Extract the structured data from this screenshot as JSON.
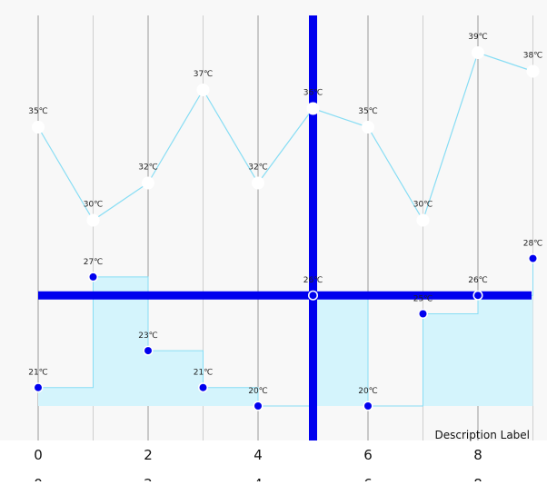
{
  "chart_data": {
    "type": "line",
    "x_ticks": [
      0,
      2,
      4,
      6,
      8
    ],
    "xlim": [
      0,
      9
    ],
    "grid_x": true,
    "description": "Description Label",
    "series": [
      {
        "style": "line",
        "color": "#87DDF4",
        "points": [
          {
            "x": 0,
            "y": 35,
            "label": "35℃"
          },
          {
            "x": 1,
            "y": 30,
            "label": "30℃"
          },
          {
            "x": 2,
            "y": 32,
            "label": "32℃"
          },
          {
            "x": 3,
            "y": 37,
            "label": "37℃"
          },
          {
            "x": 4,
            "y": 32,
            "label": "32℃"
          },
          {
            "x": 5,
            "y": 36,
            "label": "36℃"
          },
          {
            "x": 6,
            "y": 35,
            "label": "35℃"
          },
          {
            "x": 7,
            "y": 30,
            "label": "30℃"
          },
          {
            "x": 8,
            "y": 39,
            "label": "39℃"
          },
          {
            "x": 9,
            "y": 38,
            "label": "38℃"
          }
        ]
      },
      {
        "style": "stepped-area",
        "color": "#87DDF4",
        "fill": "#D4F4FC",
        "marker_color": "#0000EE",
        "points": [
          {
            "x": 0,
            "y": 21,
            "label": "21℃"
          },
          {
            "x": 1,
            "y": 27,
            "label": "27℃"
          },
          {
            "x": 2,
            "y": 23,
            "label": "23℃"
          },
          {
            "x": 3,
            "y": 21,
            "label": "21℃"
          },
          {
            "x": 4,
            "y": 20,
            "label": "20℃"
          },
          {
            "x": 5,
            "y": 26,
            "label": "26℃"
          },
          {
            "x": 6,
            "y": 20,
            "label": "20℃"
          },
          {
            "x": 7,
            "y": 25,
            "label": "25℃"
          },
          {
            "x": 8,
            "y": 26,
            "label": "26℃"
          },
          {
            "x": 9,
            "y": 28,
            "label": "28℃"
          }
        ]
      }
    ],
    "highlight": {
      "x": 5,
      "y": 26,
      "color": "#0000EE"
    }
  }
}
